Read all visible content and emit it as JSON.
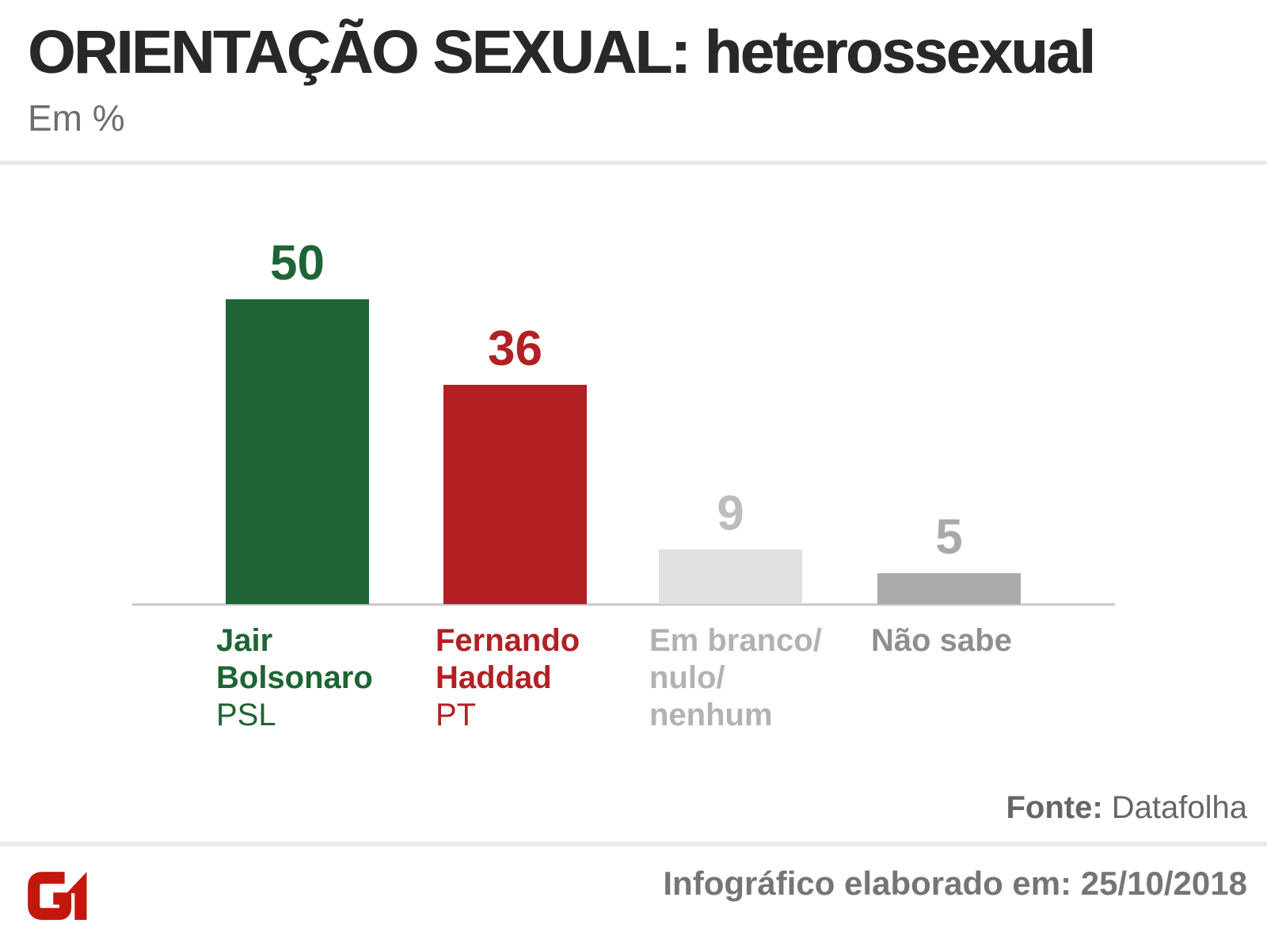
{
  "header": {
    "title": "ORIENTAÇÃO SEXUAL: heterossexual",
    "subtitle": "Em %"
  },
  "chart_data": {
    "type": "bar",
    "title": "ORIENTAÇÃO SEXUAL: heterossexual",
    "unit_label": "Em %",
    "categories": [
      "Jair Bolsonaro (PSL)",
      "Fernando Haddad (PT)",
      "Em branco/nulo/nenhum",
      "Não sabe"
    ],
    "values": [
      50,
      36,
      9,
      5
    ],
    "ylim": [
      0,
      50
    ],
    "grid": false,
    "legend": false,
    "bars": [
      {
        "value": 50,
        "name_line1": "Jair",
        "name_line2": "Bolsonaro",
        "party": "PSL",
        "color": "#1e6434",
        "value_color": "#1e6434",
        "label_color": "#1e6434"
      },
      {
        "value": 36,
        "name_line1": "Fernando",
        "name_line2": "Haddad",
        "party": "PT",
        "color": "#b22024",
        "value_color": "#b22024",
        "label_color": "#b22024"
      },
      {
        "value": 9,
        "name_line1": "Em branco/",
        "name_line2": "nulo/",
        "name_line3": "nenhum",
        "color": "#e0e0e0",
        "value_color": "#bdbdbd",
        "label_color": "#b2b2b2"
      },
      {
        "value": 5,
        "name_line1": "Não sabe",
        "color": "#ababab",
        "value_color": "#a9a9a9",
        "label_color": "#8f8f8f"
      }
    ]
  },
  "source": {
    "label": "Fonte:",
    "value": "Datafolha"
  },
  "footer": {
    "note": "Infográfico elaborado em: 25/10/2018",
    "logo_color": "#c4170c"
  }
}
